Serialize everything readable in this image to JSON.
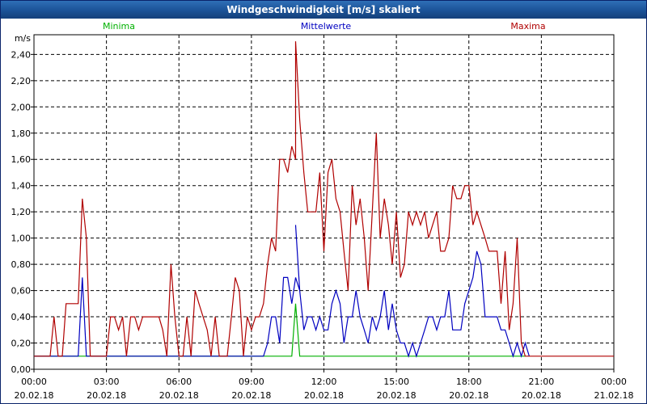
{
  "window": {
    "title": "Windgeschwindigkeit [m/s] skaliert"
  },
  "chart_data": {
    "type": "line",
    "title": "Windgeschwindigkeit [m/s] skaliert",
    "ylabel": "m/s",
    "xlabel": "",
    "ylim": [
      0,
      2.55
    ],
    "xlim": [
      0,
      24
    ],
    "grid": true,
    "legend_position": "top",
    "yticks": [
      0,
      0.2,
      0.4,
      0.6,
      0.8,
      1.0,
      1.2,
      1.4,
      1.6,
      1.8,
      2.0,
      2.2,
      2.4
    ],
    "ytick_labels": [
      "0,00",
      "0,20",
      "0,40",
      "0,60",
      "0,80",
      "1,00",
      "1,20",
      "1,40",
      "1,60",
      "1,80",
      "2,00",
      "2,20",
      "2,40"
    ],
    "xticks": [
      {
        "x": 0,
        "time": "00:00",
        "date": "20.02.18"
      },
      {
        "x": 3,
        "time": "03:00",
        "date": "20.02.18"
      },
      {
        "x": 6,
        "time": "06:00",
        "date": "20.02.18"
      },
      {
        "x": 9,
        "time": "09:00",
        "date": "20.02.18"
      },
      {
        "x": 12,
        "time": "12:00",
        "date": "20.02.18"
      },
      {
        "x": 15,
        "time": "15:00",
        "date": "20.02.18"
      },
      {
        "x": 18,
        "time": "18:00",
        "date": "20.02.18"
      },
      {
        "x": 21,
        "time": "21:00",
        "date": "20.02.18"
      },
      {
        "x": 24,
        "time": "00:00",
        "date": "21.02.18"
      }
    ],
    "series": [
      {
        "name": "Minima",
        "color": "#00b000",
        "points": [
          [
            0,
            0.1
          ],
          [
            10.67,
            0.1
          ],
          [
            10.83,
            0.5
          ],
          [
            11.0,
            0.1
          ],
          [
            20.33,
            0.1
          ]
        ]
      },
      {
        "name": "Mittelwerte",
        "color": "#0000c0",
        "points": [
          [
            0,
            0.1
          ],
          [
            1.83,
            0.1
          ],
          [
            2.0,
            0.7
          ],
          [
            2.17,
            0.1
          ],
          [
            9.5,
            0.1
          ],
          [
            9.67,
            0.2
          ],
          [
            9.83,
            0.4
          ],
          [
            10.0,
            0.4
          ],
          [
            10.17,
            0.2
          ],
          [
            10.33,
            0.7
          ],
          [
            10.5,
            0.7
          ],
          [
            10.67,
            0.5
          ],
          [
            10.83,
            0.7
          ],
          [
            11.0,
            0.6
          ],
          [
            10.83,
            1.1
          ],
          [
            11.0,
            0.6
          ],
          [
            11.17,
            0.3
          ],
          [
            11.33,
            0.4
          ],
          [
            11.5,
            0.4
          ],
          [
            11.67,
            0.3
          ],
          [
            11.83,
            0.4
          ],
          [
            12.0,
            0.3
          ],
          [
            12.17,
            0.3
          ],
          [
            12.33,
            0.5
          ],
          [
            12.5,
            0.6
          ],
          [
            12.67,
            0.5
          ],
          [
            12.83,
            0.2
          ],
          [
            13.0,
            0.4
          ],
          [
            13.17,
            0.4
          ],
          [
            13.33,
            0.6
          ],
          [
            13.5,
            0.4
          ],
          [
            13.67,
            0.3
          ],
          [
            13.83,
            0.2
          ],
          [
            14.0,
            0.4
          ],
          [
            14.17,
            0.3
          ],
          [
            14.33,
            0.4
          ],
          [
            14.5,
            0.6
          ],
          [
            14.67,
            0.3
          ],
          [
            14.83,
            0.5
          ],
          [
            15.0,
            0.3
          ],
          [
            15.17,
            0.2
          ],
          [
            15.33,
            0.2
          ],
          [
            15.5,
            0.1
          ],
          [
            15.67,
            0.2
          ],
          [
            15.83,
            0.1
          ],
          [
            16.0,
            0.2
          ],
          [
            16.17,
            0.3
          ],
          [
            16.33,
            0.4
          ],
          [
            16.5,
            0.4
          ],
          [
            16.67,
            0.3
          ],
          [
            16.83,
            0.4
          ],
          [
            17.0,
            0.4
          ],
          [
            17.17,
            0.6
          ],
          [
            17.33,
            0.3
          ],
          [
            17.5,
            0.3
          ],
          [
            17.67,
            0.3
          ],
          [
            17.83,
            0.5
          ],
          [
            18.0,
            0.6
          ],
          [
            18.17,
            0.7
          ],
          [
            18.33,
            0.9
          ],
          [
            18.5,
            0.8
          ],
          [
            18.67,
            0.4
          ],
          [
            18.83,
            0.4
          ],
          [
            19.0,
            0.4
          ],
          [
            19.17,
            0.4
          ],
          [
            19.33,
            0.3
          ],
          [
            19.5,
            0.3
          ],
          [
            19.67,
            0.2
          ],
          [
            19.83,
            0.1
          ],
          [
            20.0,
            0.2
          ],
          [
            20.17,
            0.1
          ],
          [
            20.33,
            0.2
          ],
          [
            20.5,
            0.1
          ]
        ]
      },
      {
        "name": "Maxima",
        "color": "#b00000",
        "points": [
          [
            0,
            0.1
          ],
          [
            0.67,
            0.1
          ],
          [
            0.83,
            0.4
          ],
          [
            1.0,
            0.1
          ],
          [
            1.17,
            0.1
          ],
          [
            1.33,
            0.5
          ],
          [
            1.5,
            0.5
          ],
          [
            1.67,
            0.5
          ],
          [
            1.83,
            0.5
          ],
          [
            2.0,
            1.3
          ],
          [
            2.17,
            1.0
          ],
          [
            2.33,
            0.1
          ],
          [
            3.0,
            0.1
          ],
          [
            3.17,
            0.4
          ],
          [
            3.33,
            0.4
          ],
          [
            3.5,
            0.3
          ],
          [
            3.67,
            0.4
          ],
          [
            3.83,
            0.1
          ],
          [
            4.0,
            0.4
          ],
          [
            4.17,
            0.4
          ],
          [
            4.33,
            0.3
          ],
          [
            4.5,
            0.4
          ],
          [
            4.67,
            0.4
          ],
          [
            4.83,
            0.4
          ],
          [
            5.0,
            0.4
          ],
          [
            5.17,
            0.4
          ],
          [
            5.33,
            0.3
          ],
          [
            5.5,
            0.1
          ],
          [
            5.67,
            0.8
          ],
          [
            5.83,
            0.4
          ],
          [
            6.0,
            0.1
          ],
          [
            6.17,
            0.1
          ],
          [
            6.33,
            0.4
          ],
          [
            6.5,
            0.1
          ],
          [
            6.67,
            0.6
          ],
          [
            6.83,
            0.5
          ],
          [
            7.0,
            0.4
          ],
          [
            7.17,
            0.3
          ],
          [
            7.33,
            0.1
          ],
          [
            7.5,
            0.4
          ],
          [
            7.67,
            0.1
          ],
          [
            8.0,
            0.1
          ],
          [
            8.17,
            0.4
          ],
          [
            8.33,
            0.7
          ],
          [
            8.5,
            0.6
          ],
          [
            8.67,
            0.1
          ],
          [
            8.83,
            0.4
          ],
          [
            9.0,
            0.3
          ],
          [
            9.17,
            0.4
          ],
          [
            9.33,
            0.4
          ],
          [
            9.5,
            0.5
          ],
          [
            9.67,
            0.8
          ],
          [
            9.83,
            1.0
          ],
          [
            10.0,
            0.9
          ],
          [
            10.17,
            1.6
          ],
          [
            10.33,
            1.6
          ],
          [
            10.5,
            1.5
          ],
          [
            10.67,
            1.7
          ],
          [
            10.83,
            1.6
          ],
          [
            10.83,
            2.5
          ],
          [
            11.0,
            1.9
          ],
          [
            11.17,
            1.5
          ],
          [
            11.33,
            1.2
          ],
          [
            11.5,
            1.2
          ],
          [
            11.67,
            1.2
          ],
          [
            11.83,
            1.5
          ],
          [
            12.0,
            0.9
          ],
          [
            12.17,
            1.5
          ],
          [
            12.33,
            1.6
          ],
          [
            12.5,
            1.3
          ],
          [
            12.67,
            1.2
          ],
          [
            12.83,
            0.9
          ],
          [
            13.0,
            0.6
          ],
          [
            13.17,
            1.4
          ],
          [
            13.33,
            1.1
          ],
          [
            13.5,
            1.3
          ],
          [
            13.67,
            1.0
          ],
          [
            13.83,
            0.6
          ],
          [
            14.0,
            1.2
          ],
          [
            14.17,
            1.8
          ],
          [
            14.33,
            1.0
          ],
          [
            14.5,
            1.3
          ],
          [
            14.67,
            1.1
          ],
          [
            14.83,
            0.8
          ],
          [
            15.0,
            1.2
          ],
          [
            15.17,
            0.7
          ],
          [
            15.33,
            0.8
          ],
          [
            15.5,
            1.2
          ],
          [
            15.67,
            1.1
          ],
          [
            15.83,
            1.2
          ],
          [
            16.0,
            1.1
          ],
          [
            16.17,
            1.2
          ],
          [
            16.33,
            1.0
          ],
          [
            16.5,
            1.1
          ],
          [
            16.67,
            1.2
          ],
          [
            16.83,
            0.9
          ],
          [
            17.0,
            0.9
          ],
          [
            17.17,
            1.0
          ],
          [
            17.33,
            1.4
          ],
          [
            17.5,
            1.3
          ],
          [
            17.67,
            1.3
          ],
          [
            17.83,
            1.4
          ],
          [
            18.0,
            1.4
          ],
          [
            18.17,
            1.1
          ],
          [
            18.33,
            1.2
          ],
          [
            18.5,
            1.1
          ],
          [
            18.67,
            1.0
          ],
          [
            18.83,
            0.9
          ],
          [
            19.0,
            0.9
          ],
          [
            19.17,
            0.9
          ],
          [
            19.33,
            0.5
          ],
          [
            19.5,
            0.9
          ],
          [
            19.67,
            0.3
          ],
          [
            19.83,
            0.5
          ],
          [
            20.0,
            1.0
          ],
          [
            20.17,
            0.2
          ],
          [
            20.33,
            0.1
          ],
          [
            24,
            0.1
          ]
        ]
      }
    ]
  }
}
